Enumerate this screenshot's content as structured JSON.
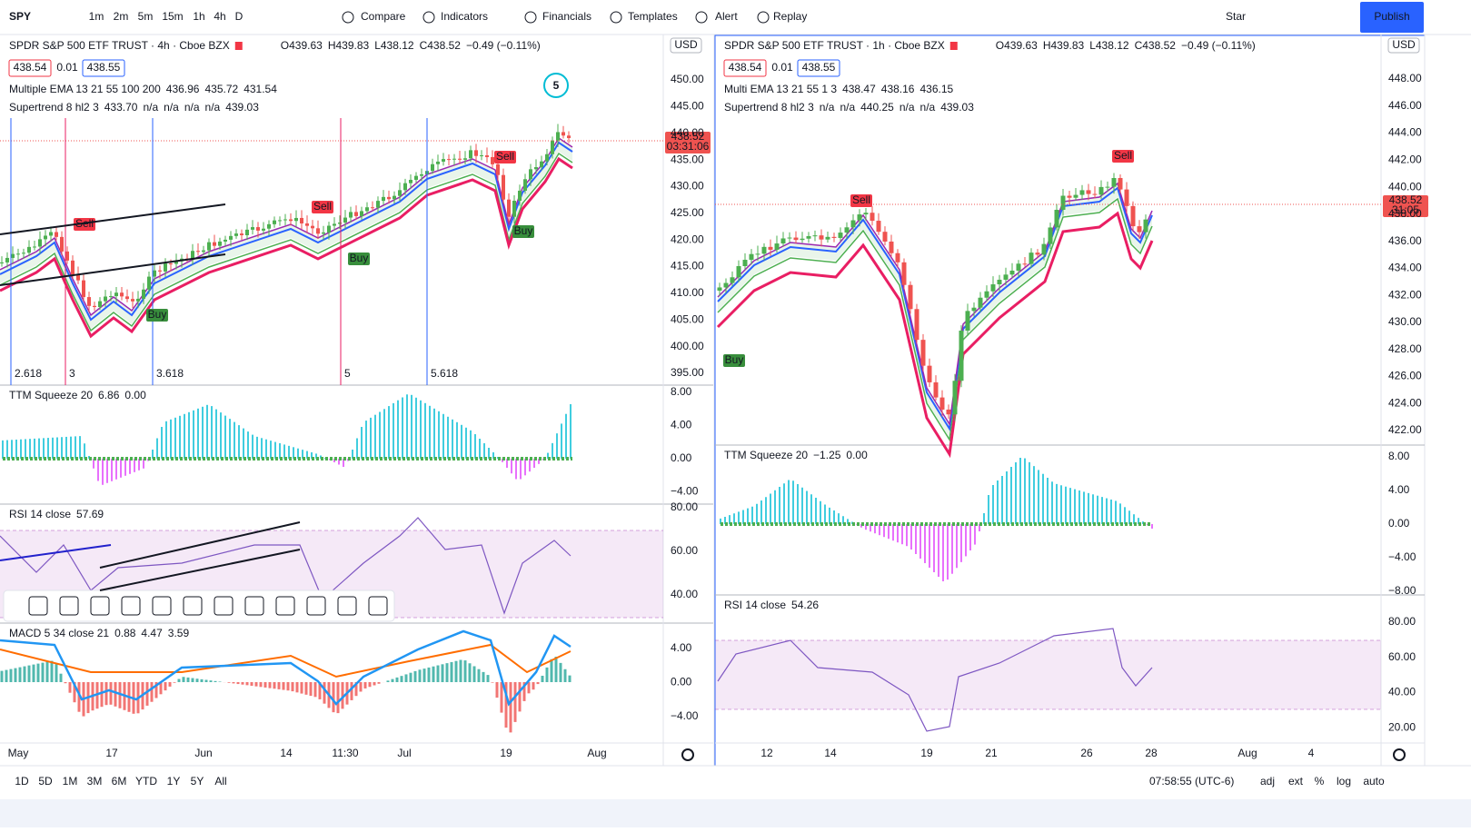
{
  "toolbar": {
    "symbol": "SPY",
    "intervals": [
      "1m",
      "2m",
      "5m",
      "15m",
      "1h",
      "4h",
      "D"
    ],
    "buttons": [
      "Compare",
      "Indicators",
      "Financials",
      "Templates",
      "Alert",
      "Replay"
    ],
    "star": "Star",
    "publish": "Publish"
  },
  "charts": [
    {
      "title": "SPDR S&P 500 ETF TRUST · 4h · Cboe BZX",
      "ohlc": [
        "O439.63",
        "H439.83",
        "L438.12",
        "C438.52",
        "−0.49 (−0.11%)"
      ],
      "bid": "438.54",
      "spread": "0.01",
      "ask": "438.55",
      "studies": [
        {
          "name": "Multiple EMA 13 21 55 100 200",
          "values": [
            "436.96",
            "435.72",
            "431.54"
          ]
        },
        {
          "name": "Supertrend 8 hl2 3",
          "values": [
            "433.70",
            "n/a",
            "n/a",
            "n/a",
            "n/a",
            "439.03"
          ]
        }
      ],
      "currency": "USD",
      "price_ticks": [
        "450.00",
        "445.00",
        "440.00",
        "435.00",
        "430.00",
        "425.00",
        "420.00",
        "415.00",
        "410.00",
        "405.00",
        "400.00",
        "395.00"
      ],
      "last_price": "438.52",
      "countdown": "03:31:06",
      "fib_labels": [
        "2.618",
        "3",
        "3.618",
        "5",
        "5.618"
      ],
      "signals": [
        "Sell",
        "Sell",
        "Sell",
        "Buy",
        "Buy",
        "Buy"
      ],
      "wave": "5",
      "panes": [
        {
          "title": "TTM Squeeze 20",
          "values": [
            "6.86",
            "0.00"
          ],
          "ticks": [
            "8.00",
            "4.00",
            "0.00",
            "−4.00"
          ]
        },
        {
          "title": "RSI 14 close",
          "values": [
            "57.69"
          ],
          "ticks": [
            "80.00",
            "60.00",
            "40.00"
          ]
        },
        {
          "title": "MACD 5 34 close 21",
          "values": [
            "0.88",
            "4.47",
            "3.59"
          ],
          "ticks": [
            "4.00",
            "0.00",
            "−4.00"
          ]
        }
      ],
      "time_axis": [
        "May",
        "17",
        "Jun",
        "14",
        "11:30",
        "Jul",
        "19",
        "Aug"
      ]
    },
    {
      "title": "SPDR S&P 500 ETF TRUST · 1h · Cboe BZX",
      "ohlc": [
        "O439.63",
        "H439.83",
        "L438.12",
        "C438.52",
        "−0.49 (−0.11%)"
      ],
      "bid": "438.54",
      "spread": "0.01",
      "ask": "438.55",
      "studies": [
        {
          "name": "Multi EMA 13 21 55 1 3",
          "values": [
            "438.47",
            "438.16",
            "436.15"
          ]
        },
        {
          "name": "Supertrend 8 hl2 3",
          "values": [
            "n/a",
            "n/a",
            "440.25",
            "n/a",
            "n/a",
            "439.03"
          ]
        }
      ],
      "currency": "USD",
      "price_ticks": [
        "448.00",
        "446.00",
        "444.00",
        "442.00",
        "440.00",
        "438.00",
        "436.00",
        "434.00",
        "432.00",
        "430.00",
        "428.00",
        "426.00",
        "424.00",
        "422.00"
      ],
      "last_price": "438.52",
      "countdown": "31:05",
      "fib_labels": [],
      "signals": [
        "Sell",
        "Sell",
        "Buy"
      ],
      "panes": [
        {
          "title": "TTM Squeeze 20",
          "values": [
            "−1.25",
            "0.00"
          ],
          "ticks": [
            "8.00",
            "4.00",
            "0.00",
            "−4.00",
            "−8.00"
          ]
        },
        {
          "title": "RSI 14 close",
          "values": [
            "54.26"
          ],
          "ticks": [
            "80.00",
            "60.00",
            "40.00",
            "20.00"
          ]
        }
      ],
      "time_axis": [
        "12",
        "14",
        "19",
        "21",
        "26",
        "28",
        "Aug",
        "4"
      ]
    }
  ],
  "bottom": {
    "ranges": [
      "1D",
      "5D",
      "1M",
      "3M",
      "6M",
      "YTD",
      "1Y",
      "5Y",
      "All"
    ],
    "clock": "07:58:55 (UTC-6)",
    "options": [
      "adj",
      "ext",
      "%",
      "log",
      "auto"
    ]
  }
}
